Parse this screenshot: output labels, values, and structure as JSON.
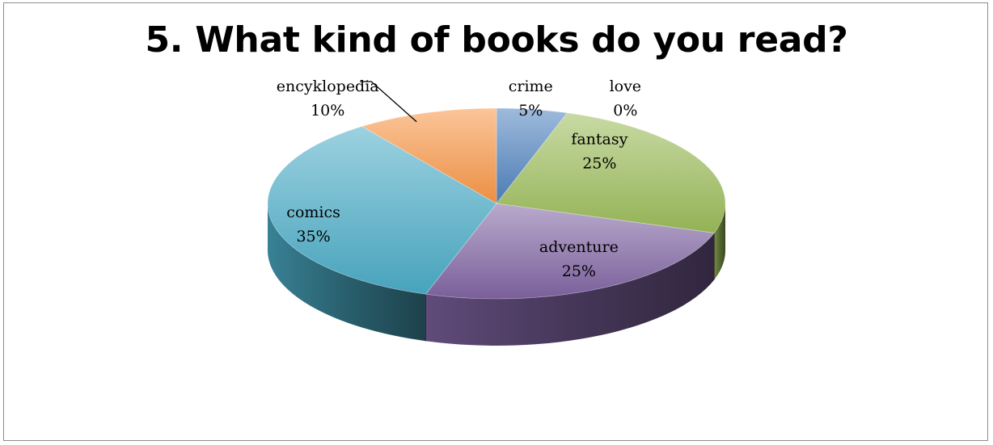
{
  "chart_data": {
    "type": "pie",
    "title": "5. What kind of books do you read?",
    "categories": [
      "crime",
      "love",
      "fantasy",
      "adventure",
      "comics",
      "encyklopedia"
    ],
    "values": [
      5,
      0,
      25,
      25,
      35,
      10
    ],
    "value_labels": [
      "5%",
      "0%",
      "25%",
      "25%",
      "35%",
      "10%"
    ],
    "colors": [
      "#4f81bd",
      "#c0504d",
      "#9bbb59",
      "#8064a2",
      "#4bacc6",
      "#f79646"
    ],
    "style": "3d-exploded-pie",
    "legend": "none"
  }
}
